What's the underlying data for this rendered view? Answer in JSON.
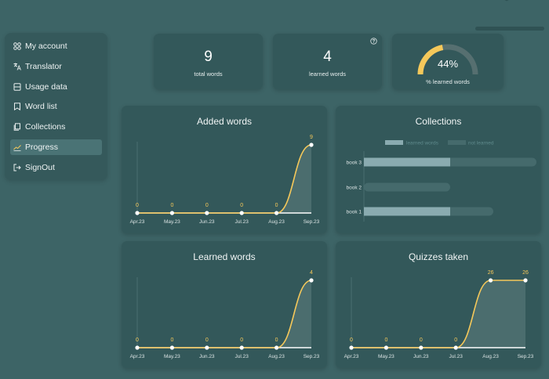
{
  "sidebar": {
    "items": [
      {
        "label": "My account",
        "icon": "grid-icon"
      },
      {
        "label": "Translator",
        "icon": "translate-icon"
      },
      {
        "label": "Usage data",
        "icon": "database-icon"
      },
      {
        "label": "Word list",
        "icon": "bookmark-icon"
      },
      {
        "label": "Collections",
        "icon": "collection-icon"
      },
      {
        "label": "Progress",
        "icon": "trend-icon",
        "active": true
      },
      {
        "label": "SignOut",
        "icon": "signout-icon"
      }
    ]
  },
  "stats": {
    "total_words": {
      "value": "9",
      "label": "total words"
    },
    "learned_words": {
      "value": "4",
      "label": "learned words"
    },
    "percent_learned": {
      "value": "44%",
      "label": "% learned words",
      "fraction": 0.44
    }
  },
  "colors": {
    "background": "#3d6466",
    "card": "#33585a",
    "accent": "#f5c85a",
    "bar_learned": "#8aabb0",
    "bar_track": "#456a6c"
  },
  "chart_data": [
    {
      "type": "area",
      "title": "Added words",
      "categories": [
        "Apr.23",
        "May.23",
        "Jun.23",
        "Jul.23",
        "Aug.23",
        "Sep.23"
      ],
      "values": [
        0,
        0,
        0,
        0,
        0,
        9
      ]
    },
    {
      "type": "bar",
      "title": "Collections",
      "orientation": "horizontal",
      "stacked": true,
      "legend": [
        "learned words",
        "not learned"
      ],
      "legend_position": "top",
      "categories": [
        "book 3",
        "book 2",
        "book 1"
      ],
      "series": [
        {
          "name": "learned words",
          "values": [
            2,
            0,
            2
          ]
        },
        {
          "name": "not learned",
          "values": [
            2,
            2,
            1
          ]
        }
      ]
    },
    {
      "type": "area",
      "title": "Learned words",
      "categories": [
        "Apr.23",
        "May.23",
        "Jun.23",
        "Jul.23",
        "Aug.23",
        "Sep.23"
      ],
      "values": [
        0,
        0,
        0,
        0,
        0,
        4
      ]
    },
    {
      "type": "area",
      "title": "Quizzes taken",
      "categories": [
        "Apr.23",
        "May.23",
        "Jun.23",
        "Jul.23",
        "Aug.23",
        "Sep.23"
      ],
      "values": [
        0,
        0,
        0,
        0,
        26,
        26
      ]
    }
  ]
}
